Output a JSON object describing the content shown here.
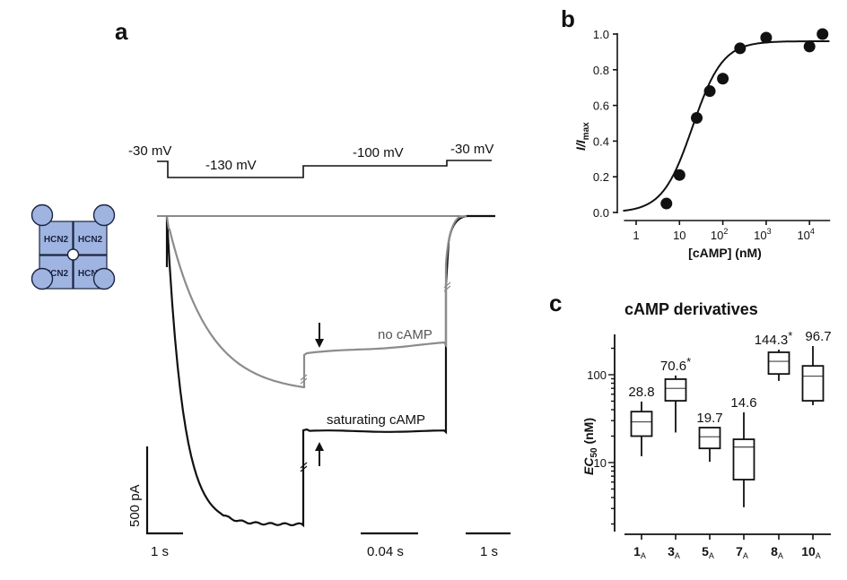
{
  "panel_a": {
    "letter": "a",
    "protocol": {
      "labels": [
        "-30 mV",
        "-130 mV",
        "-100 mV",
        "-30 mV"
      ]
    },
    "channel_diagram": {
      "subunit_label": "HCN2",
      "subunits": [
        "HCN2",
        "HCN2",
        "HCN2",
        "HCN2"
      ],
      "fill_color": "#9fb4e0",
      "stroke_color": "#1a2340"
    },
    "traces": [
      {
        "name": "no cAMP",
        "color": "#8c8c8c"
      },
      {
        "name": "saturating cAMP",
        "color": "#111111"
      }
    ],
    "scale_bars": {
      "current": "500 pA",
      "time_left": "1 s",
      "time_middle": "0.04 s",
      "time_right": "1 s"
    }
  },
  "chart_data": [
    {
      "id": "b",
      "type": "scatter",
      "panel_letter": "b",
      "title": "",
      "xlabel": "[cAMP] (nM)",
      "ylabel_main": "I/I",
      "ylabel_sub": "max",
      "xscale": "log",
      "xlim": [
        0.5,
        30000
      ],
      "ylim": [
        0,
        1.0
      ],
      "xticks": [
        {
          "value": 1,
          "label": "1",
          "exp": ""
        },
        {
          "value": 10,
          "label": "10",
          "exp": ""
        },
        {
          "value": 100,
          "label": "10",
          "exp": "2"
        },
        {
          "value": 1000,
          "label": "10",
          "exp": "3"
        },
        {
          "value": 10000,
          "label": "10",
          "exp": "4"
        }
      ],
      "yticks": [
        {
          "value": 0.0,
          "label": "0.0"
        },
        {
          "value": 0.2,
          "label": "0.2"
        },
        {
          "value": 0.4,
          "label": "0.4"
        },
        {
          "value": 0.6,
          "label": "0.6"
        },
        {
          "value": 0.8,
          "label": "0.8"
        },
        {
          "value": 1.0,
          "label": "1.0"
        }
      ],
      "points": [
        {
          "x": 5,
          "y": 0.05
        },
        {
          "x": 10,
          "y": 0.21
        },
        {
          "x": 25,
          "y": 0.53
        },
        {
          "x": 50,
          "y": 0.68
        },
        {
          "x": 100,
          "y": 0.75
        },
        {
          "x": 250,
          "y": 0.92
        },
        {
          "x": 1000,
          "y": 0.98
        },
        {
          "x": 10000,
          "y": 0.93
        },
        {
          "x": 20000,
          "y": 1.0
        }
      ],
      "fit": {
        "model": "hill",
        "ec50": 20,
        "hill_n": 1.25,
        "max": 0.96,
        "min": 0
      }
    },
    {
      "id": "c",
      "type": "box",
      "panel_letter": "c",
      "title": "cAMP derivatives",
      "xlabel": "",
      "ylabel_main": "EC",
      "ylabel_sub": "50",
      "ylabel_unit": " (nM)",
      "yscale": "log",
      "ylim": [
        2,
        300
      ],
      "yticks": [
        {
          "value": 10,
          "label": "10"
        },
        {
          "value": 100,
          "label": "100"
        }
      ],
      "categories": [
        {
          "main": "1",
          "sub": "A"
        },
        {
          "main": "3",
          "sub": "A"
        },
        {
          "main": "5",
          "sub": "A"
        },
        {
          "main": "7",
          "sub": "A"
        },
        {
          "main": "8",
          "sub": "A"
        },
        {
          "main": "10",
          "sub": "A"
        }
      ],
      "boxes": [
        {
          "label": "28.8",
          "star": false,
          "whisker_low": 11.8,
          "q1": 20,
          "median": 29,
          "q3": 38,
          "whisker_high": 49.5
        },
        {
          "label": "70.6",
          "star": true,
          "whisker_low": 22,
          "q1": 50.5,
          "median": 70,
          "q3": 89,
          "whisker_high": 98
        },
        {
          "label": "19.7",
          "star": false,
          "whisker_low": 10.2,
          "q1": 14.5,
          "median": 19.7,
          "q3": 25,
          "whisker_high": 25
        },
        {
          "label": "14.6",
          "star": false,
          "whisker_low": 3.1,
          "q1": 6.4,
          "median": 15,
          "q3": 18.4,
          "whisker_high": 37.3
        },
        {
          "label": "144.3",
          "star": true,
          "whisker_low": 85,
          "q1": 102,
          "median": 142,
          "q3": 180,
          "whisker_high": 193
        },
        {
          "label": "96.7",
          "star": false,
          "whisker_low": 45,
          "q1": 50.5,
          "median": 96,
          "q3": 126,
          "whisker_high": 212
        }
      ],
      "star_symbol": "*"
    }
  ]
}
